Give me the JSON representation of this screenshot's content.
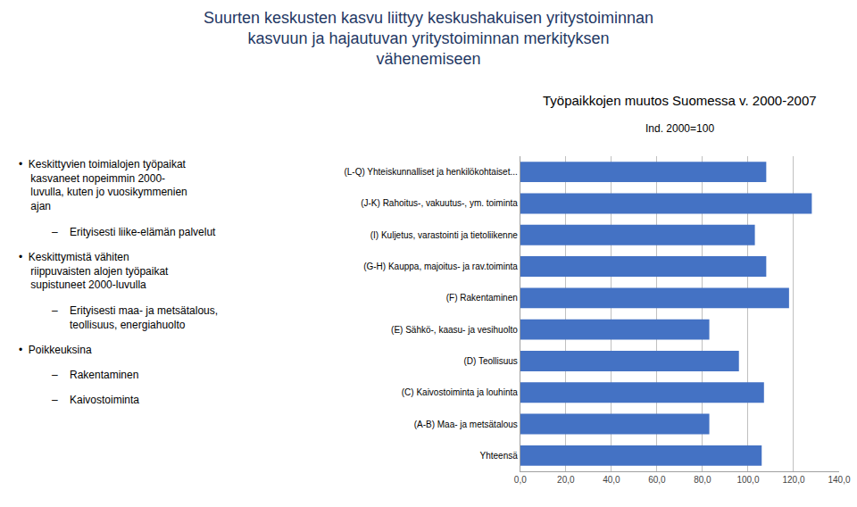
{
  "chart_data": {
    "type": "bar",
    "orientation": "horizontal",
    "title": "Suurten keskusten kasvu liittyy keskushakuisen yritystoiminnan\nkasvuun ja hajautuvan yritystoiminnan merkityksen\nvähenemiseen",
    "subtitle": "Työpaikkojen muutos Suomessa v. 2000-2007\nInd. 2000=100",
    "categories": [
      "(L-Q) Yhteiskunnalliset ja henkilökohtaiset...",
      "(J-K) Rahoitus-, vakuutus-, ym. toiminta",
      "(I) Kuljetus, varastointi ja tietoliikenne",
      "(G-H) Kauppa, majoitus- ja rav.toiminta",
      "(F) Rakentaminen",
      "(E) Sähkö-, kaasu- ja vesihuolto",
      "(D) Teollisuus",
      "(C) Kaivostoiminta ja louhinta",
      "(A-B) Maa- ja metsätalous",
      "Yhteensä"
    ],
    "values": [
      108,
      128,
      103,
      108,
      118,
      83,
      96,
      107,
      83,
      106
    ],
    "color": "#4472C4",
    "xlim": [
      0,
      140
    ],
    "xticks": [
      {
        "value": 0,
        "label": "0,0"
      },
      {
        "value": 20,
        "label": "20,0"
      },
      {
        "value": 40,
        "label": "40,0"
      },
      {
        "value": 60,
        "label": "60,0"
      },
      {
        "value": 80,
        "label": "80,0"
      },
      {
        "value": 100,
        "label": "100,0"
      },
      {
        "value": 120,
        "label": "120,0"
      },
      {
        "value": 140,
        "label": "140,0"
      }
    ],
    "grid": true,
    "annotations": [
      "•  Keskittyvien toimialojen työpaikat\n    kasvaneet nopeimmin 2000-\n    luvulla, kuten jo vuosikymmenien\n    ajan",
      "–    Erityisesti liike-elämän palvelut",
      "•  Keskittymistä vähiten\n    riippuvaisten alojen työpaikat\n    supistuneet 2000-luvulla",
      "–    Erityisesti maa- ja metsätalous,\n      teollisuus, energiahuolto",
      "•  Poikkeuksina",
      "–    Rakentaminen",
      "–    Kaivostoiminta"
    ]
  }
}
